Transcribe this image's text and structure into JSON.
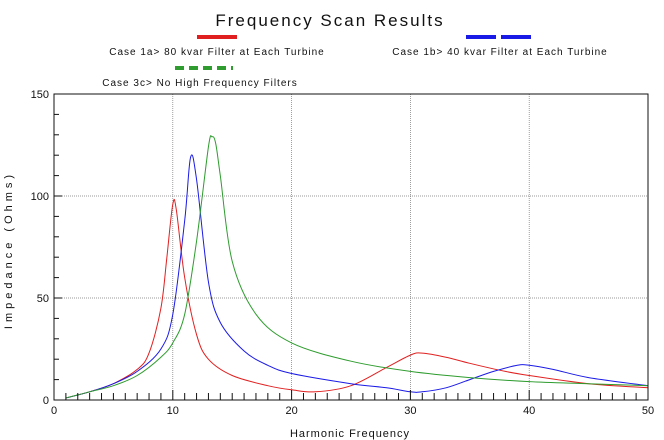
{
  "chart_data": {
    "type": "line",
    "title": "Frequency Scan Results",
    "xlabel": "Harmonic Frequency",
    "ylabel": "Impedance (Ohms)",
    "xlim": [
      0,
      50
    ],
    "ylim": [
      0,
      150
    ],
    "x_ticks": [
      0,
      10,
      20,
      30,
      40,
      50
    ],
    "y_ticks": [
      0,
      50,
      100,
      150
    ],
    "grid": true,
    "legend_position": "top",
    "series": [
      {
        "name": "Case 1a> 80 kvar Filter at Each Turbine",
        "color": "#e02020",
        "legend_style": "solid",
        "points": [
          [
            1,
            1
          ],
          [
            3,
            4
          ],
          [
            5,
            8
          ],
          [
            7,
            15
          ],
          [
            8,
            23
          ],
          [
            9,
            45
          ],
          [
            9.5,
            70
          ],
          [
            10,
            96
          ],
          [
            10.3,
            93
          ],
          [
            11,
            60
          ],
          [
            12,
            32
          ],
          [
            13,
            20
          ],
          [
            15,
            12
          ],
          [
            18,
            7
          ],
          [
            20,
            5
          ],
          [
            22,
            4
          ],
          [
            25,
            7
          ],
          [
            28,
            16
          ],
          [
            30,
            22
          ],
          [
            31,
            23
          ],
          [
            33,
            21
          ],
          [
            35,
            18
          ],
          [
            38,
            14
          ],
          [
            40,
            12
          ],
          [
            45,
            8
          ],
          [
            50,
            6
          ]
        ]
      },
      {
        "name": "Case 1b> 40 kvar Filter at Each Turbine",
        "color": "#1a1ae6",
        "legend_style": "solid",
        "points": [
          [
            1,
            1
          ],
          [
            3,
            4
          ],
          [
            5,
            8
          ],
          [
            7,
            14
          ],
          [
            9,
            25
          ],
          [
            10,
            42
          ],
          [
            11,
            88
          ],
          [
            11.5,
            119
          ],
          [
            12,
            108
          ],
          [
            13,
            58
          ],
          [
            14,
            38
          ],
          [
            16,
            24
          ],
          [
            18,
            17
          ],
          [
            20,
            13
          ],
          [
            25,
            8
          ],
          [
            28,
            6
          ],
          [
            30,
            4
          ],
          [
            31,
            4
          ],
          [
            33,
            6
          ],
          [
            35,
            10
          ],
          [
            37,
            14
          ],
          [
            39,
            17
          ],
          [
            40,
            17
          ],
          [
            42,
            15
          ],
          [
            45,
            11
          ],
          [
            50,
            7
          ]
        ]
      },
      {
        "name": "Case 3c> No High Frequency Filters",
        "color": "#2e9c2e",
        "legend_style": "dashed",
        "points": [
          [
            1,
            1
          ],
          [
            3,
            4
          ],
          [
            5,
            7
          ],
          [
            7,
            12
          ],
          [
            9,
            21
          ],
          [
            10,
            28
          ],
          [
            11,
            42
          ],
          [
            12,
            78
          ],
          [
            13,
            124
          ],
          [
            13.3,
            129
          ],
          [
            13.6,
            126
          ],
          [
            14,
            110
          ],
          [
            15,
            68
          ],
          [
            17,
            42
          ],
          [
            20,
            28
          ],
          [
            25,
            19
          ],
          [
            30,
            14
          ],
          [
            35,
            11
          ],
          [
            40,
            9
          ],
          [
            45,
            8
          ],
          [
            50,
            7
          ]
        ]
      }
    ]
  }
}
